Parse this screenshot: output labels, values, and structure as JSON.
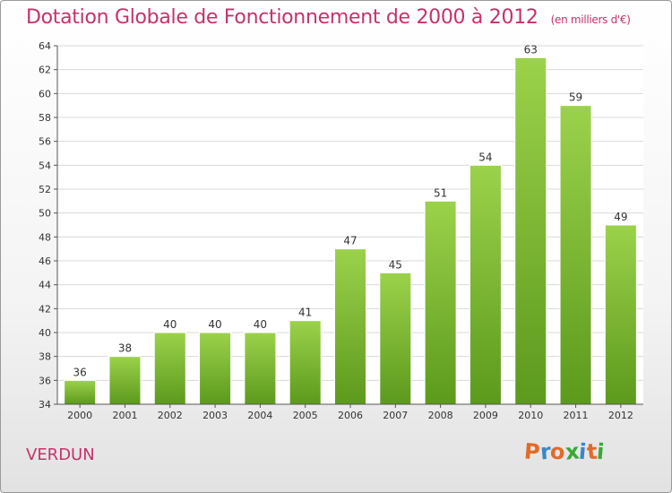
{
  "header": {
    "title": "Dotation Globale de Fonctionnement de 2000 à 2012",
    "subtitle": "(en milliers d'€)"
  },
  "footer": {
    "city": "VERDUN",
    "logo": "Proxiti",
    "logo_colors": [
      "#e26a28",
      "#3a86c8",
      "#e26a28",
      "#39a935",
      "#3a86c8",
      "#e26a28",
      "#39a935"
    ]
  },
  "colors": {
    "title": "#c4336a",
    "bar_top": "#9bd24b",
    "bar_bottom": "#5c9a1c",
    "grid": "#d8d8d8",
    "axis": "#555555"
  },
  "chart_data": {
    "type": "bar",
    "title": "Dotation Globale de Fonctionnement de 2000 à 2012",
    "subtitle": "(en milliers d'€)",
    "xlabel": "",
    "ylabel": "",
    "categories": [
      "2000",
      "2001",
      "2002",
      "2003",
      "2004",
      "2005",
      "2006",
      "2007",
      "2008",
      "2009",
      "2010",
      "2011",
      "2012"
    ],
    "values": [
      36,
      38,
      40,
      40,
      40,
      41,
      47,
      45,
      51,
      54,
      63,
      59,
      49
    ],
    "ylim": [
      34,
      64
    ],
    "yticks": [
      34,
      36,
      38,
      40,
      42,
      44,
      46,
      48,
      50,
      52,
      54,
      56,
      58,
      60,
      62,
      64
    ],
    "grid": true,
    "legend": "none"
  }
}
